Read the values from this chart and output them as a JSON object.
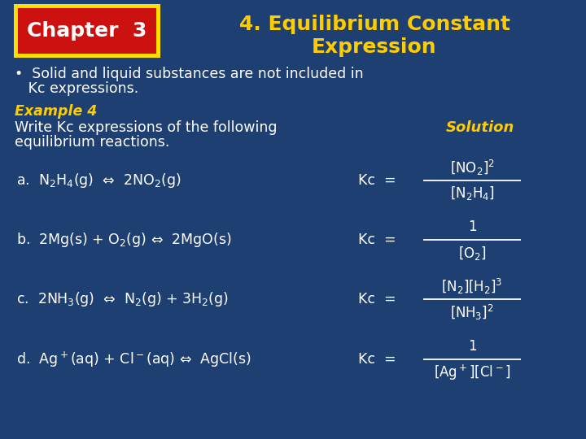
{
  "bg_color": "#1e3f72",
  "chapter_box_bg": "#cc1111",
  "chapter_box_border": "#ffdd00",
  "chapter_text": "Chapter  3",
  "chapter_text_color": "#ffffff",
  "title_text_line1": "4. Equilibrium Constant",
  "title_text_line2": "Expression",
  "title_color": "#ffcc00",
  "bullet_color": "#ffffff",
  "bullet_line1": "•  Solid and liquid substances are not included in",
  "bullet_line2": "   Kc expressions.",
  "example_color": "#ffcc00",
  "example_text": "Example 4",
  "write_text_line1": "Write Kc expressions of the following",
  "write_text_line2": "equilibrium reactions.",
  "write_color": "#ffffff",
  "solution_color": "#ffcc00",
  "solution_text": "Solution",
  "reaction_color": "#ffffff",
  "reactions": [
    "a.  N$_2$H$_4$(g)  ⇔  2NO$_2$(g)",
    "b.  2Mg(s) + O$_2$(g) ⇔  2MgO(s)",
    "c.  2NH$_3$(g)  ⇔  N$_2$(g) + 3H$_2$(g)",
    "d.  Ag$^+$(aq) + Cl$^-$(aq) ⇔  AgCl(s)"
  ],
  "kc_expressions": [
    {
      "num": "[NO$_2$]$^2$",
      "den": "[N$_2$H$_4$]"
    },
    {
      "num": "1",
      "den": "[O$_2$]"
    },
    {
      "num": "[N$_2$][H$_2$]$^3$",
      "den": "[NH$_3$]$^2$"
    },
    {
      "num": "1",
      "den": "[Ag$^+$][Cl$^-$]"
    }
  ]
}
